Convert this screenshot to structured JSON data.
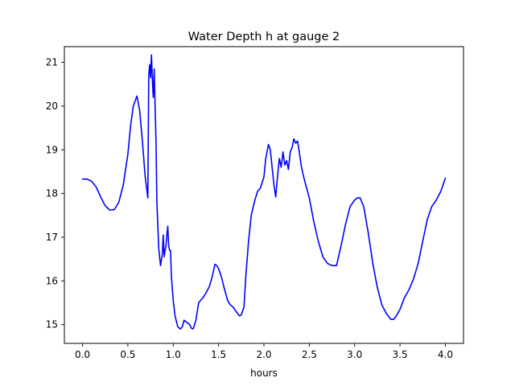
{
  "chart_data": {
    "type": "line",
    "title": "Water Depth h at gauge 2",
    "xlabel": "hours",
    "ylabel": "",
    "xlim": [
      -0.2,
      4.2
    ],
    "ylim": [
      14.57,
      21.36
    ],
    "xticks": [
      0.0,
      0.5,
      1.0,
      1.5,
      2.0,
      2.5,
      3.0,
      3.5,
      4.0
    ],
    "xtick_labels": [
      "0.0",
      "0.5",
      "1.0",
      "1.5",
      "2.0",
      "2.5",
      "3.0",
      "3.5",
      "4.0"
    ],
    "yticks": [
      15,
      16,
      17,
      18,
      19,
      20,
      21
    ],
    "ytick_labels": [
      "15",
      "16",
      "17",
      "18",
      "19",
      "20",
      "21"
    ],
    "grid": false,
    "legend": "none",
    "series": [
      {
        "color": "#0000ff",
        "x": [
          0.0,
          0.05,
          0.1,
          0.15,
          0.2,
          0.25,
          0.3,
          0.35,
          0.4,
          0.45,
          0.5,
          0.53,
          0.56,
          0.6,
          0.63,
          0.66,
          0.69,
          0.72,
          0.73,
          0.74,
          0.75,
          0.76,
          0.77,
          0.78,
          0.79,
          0.8,
          0.81,
          0.82,
          0.84,
          0.86,
          0.88,
          0.89,
          0.9,
          0.91,
          0.92,
          0.93,
          0.94,
          0.95,
          0.96,
          0.97,
          0.98,
          1.0,
          1.02,
          1.05,
          1.08,
          1.1,
          1.12,
          1.15,
          1.18,
          1.2,
          1.22,
          1.25,
          1.28,
          1.3,
          1.33,
          1.36,
          1.4,
          1.43,
          1.46,
          1.48,
          1.5,
          1.53,
          1.56,
          1.6,
          1.63,
          1.66,
          1.7,
          1.73,
          1.75,
          1.78,
          1.8,
          1.83,
          1.86,
          1.9,
          1.93,
          1.96,
          2.0,
          2.02,
          2.05,
          2.07,
          2.09,
          2.11,
          2.13,
          2.15,
          2.17,
          2.19,
          2.21,
          2.23,
          2.25,
          2.27,
          2.29,
          2.31,
          2.33,
          2.35,
          2.37,
          2.39,
          2.41,
          2.43,
          2.46,
          2.5,
          2.55,
          2.6,
          2.65,
          2.7,
          2.75,
          2.8,
          2.85,
          2.9,
          2.95,
          3.0,
          3.03,
          3.06,
          3.1,
          3.15,
          3.2,
          3.25,
          3.3,
          3.35,
          3.4,
          3.43,
          3.46,
          3.5,
          3.55,
          3.6,
          3.65,
          3.7,
          3.75,
          3.8,
          3.85,
          3.9,
          3.95,
          4.0
        ],
        "y": [
          18.33,
          18.33,
          18.28,
          18.15,
          17.92,
          17.72,
          17.62,
          17.63,
          17.8,
          18.2,
          18.9,
          19.55,
          20.0,
          20.23,
          19.9,
          19.2,
          18.4,
          17.9,
          20.7,
          20.95,
          20.65,
          21.17,
          20.6,
          20.2,
          20.85,
          20.0,
          19.2,
          17.8,
          16.75,
          16.35,
          16.62,
          17.05,
          16.55,
          16.7,
          16.8,
          17.05,
          17.25,
          16.8,
          16.7,
          16.7,
          16.1,
          15.55,
          15.2,
          14.95,
          14.9,
          14.95,
          15.1,
          15.05,
          15.0,
          14.92,
          14.9,
          15.1,
          15.5,
          15.55,
          15.62,
          15.72,
          15.88,
          16.1,
          16.38,
          16.35,
          16.28,
          16.1,
          15.85,
          15.55,
          15.45,
          15.4,
          15.28,
          15.2,
          15.22,
          15.4,
          16.1,
          16.9,
          17.5,
          17.85,
          18.05,
          18.12,
          18.38,
          18.8,
          19.12,
          19.0,
          18.6,
          18.2,
          17.92,
          18.4,
          18.8,
          18.6,
          18.95,
          18.65,
          18.75,
          18.55,
          18.95,
          19.05,
          19.25,
          19.15,
          19.2,
          18.95,
          18.65,
          18.45,
          18.2,
          17.9,
          17.35,
          16.9,
          16.55,
          16.4,
          16.35,
          16.35,
          16.8,
          17.3,
          17.7,
          17.85,
          17.9,
          17.9,
          17.7,
          17.1,
          16.4,
          15.85,
          15.45,
          15.25,
          15.12,
          15.12,
          15.2,
          15.35,
          15.62,
          15.8,
          16.05,
          16.4,
          16.9,
          17.4,
          17.7,
          17.85,
          18.05,
          18.35
        ]
      }
    ]
  }
}
